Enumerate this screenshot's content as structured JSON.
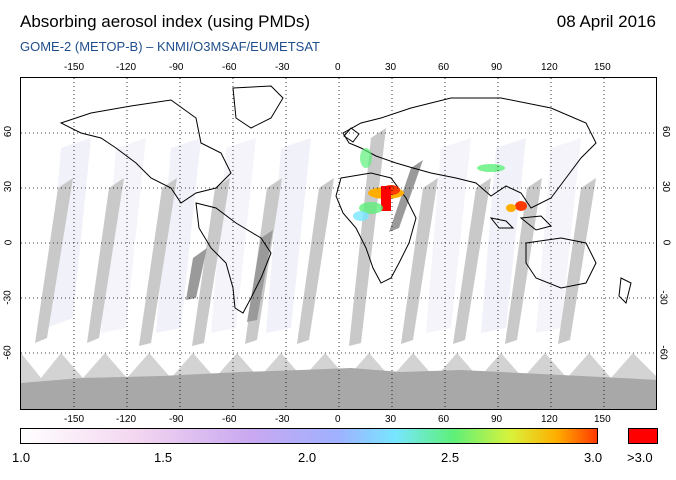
{
  "header": {
    "title": "Absorbing aerosol index (using PMDs)",
    "date": "08 April 2016",
    "subtitle": "GOME-2 (METOP-B)  –  KNMI/O3MSAF/EUMETSAT"
  },
  "axes": {
    "lon_ticks": [
      "-150",
      "-120",
      "-90",
      "-60",
      "-30",
      "0",
      "30",
      "60",
      "90",
      "120",
      "150"
    ],
    "lat_ticks": [
      "60",
      "30",
      "0",
      "-30",
      "-60"
    ]
  },
  "colorbar": {
    "labels": [
      "1.0",
      "1.5",
      "2.0",
      "2.5",
      "3.0"
    ],
    "over_label": ">3.0",
    "colors": [
      "#ffffff",
      "#f3d6f0",
      "#c9a8f0",
      "#9fb1ff",
      "#78e6ff",
      "#5df07a",
      "#d9f23b",
      "#ffae00",
      "#ff3a00"
    ],
    "over_color": "#ff0000"
  }
}
